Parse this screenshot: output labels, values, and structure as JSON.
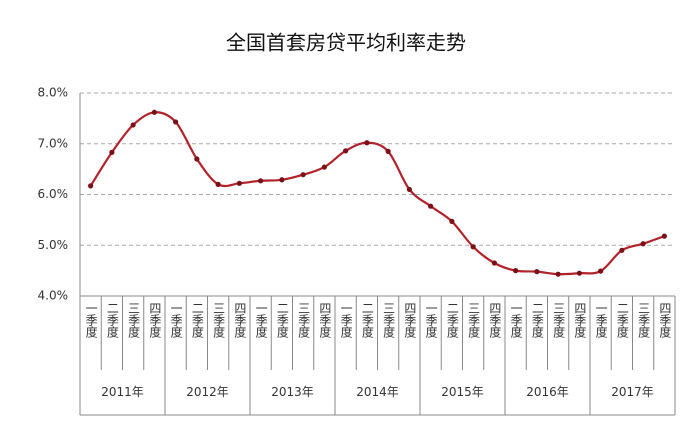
{
  "chart_data": {
    "type": "line",
    "title": "全国首套房贷平均利率走势",
    "categories": [
      "一季度",
      "二季度",
      "三季度",
      "四季度",
      "一季度",
      "二季度",
      "三季度",
      "四季度",
      "一季度",
      "二季度",
      "三季度",
      "四季度",
      "一季度",
      "二季度",
      "三季度",
      "四季度",
      "一季度",
      "二季度",
      "三季度",
      "四季度",
      "一季度",
      "二季度",
      "三季度",
      "四季度",
      "一季度",
      "二季度",
      "三季度",
      "四季度"
    ],
    "year_groups": [
      "2011年",
      "2012年",
      "2013年",
      "2014年",
      "2015年",
      "2016年",
      "2017年"
    ],
    "series": [
      {
        "name": "首套房贷平均利率",
        "color": "#b2222a",
        "values": [
          6.17,
          6.83,
          7.37,
          7.62,
          7.43,
          6.7,
          6.2,
          6.22,
          6.27,
          6.29,
          6.39,
          6.54,
          6.86,
          7.02,
          6.85,
          6.1,
          5.77,
          5.47,
          4.97,
          4.65,
          4.5,
          4.48,
          4.43,
          4.45,
          4.49,
          4.9,
          5.03,
          5.18
        ]
      }
    ],
    "ylim": [
      4,
      8
    ],
    "yticks": [
      {
        "value": 4,
        "label": "4.0%"
      },
      {
        "value": 5,
        "label": "5.0%"
      },
      {
        "value": 6,
        "label": "6.0%"
      },
      {
        "value": 7,
        "label": "7.0%"
      },
      {
        "value": 8,
        "label": "8.0%"
      }
    ],
    "grid": true
  }
}
